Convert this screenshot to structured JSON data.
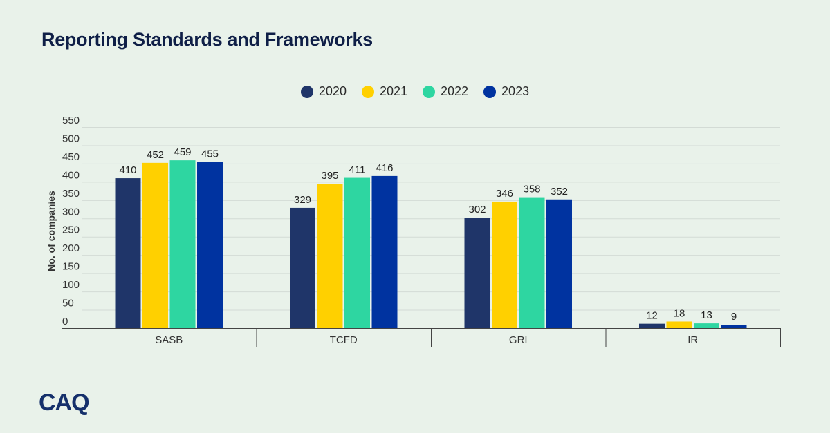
{
  "title": "Reporting Standards and Frameworks",
  "logo_text": "CAQ",
  "colors": [
    "#1f3569",
    "#ffd000",
    "#2ed6a1",
    "#0033a0"
  ],
  "chart_data": {
    "type": "bar",
    "title": "Reporting Standards and Frameworks",
    "ylabel": "No. of companies",
    "xlabel": "",
    "categories": [
      "SASB",
      "TCFD",
      "GRI",
      "IR"
    ],
    "series": [
      {
        "name": "2020",
        "values": [
          410,
          329,
          302,
          12
        ]
      },
      {
        "name": "2021",
        "values": [
          452,
          395,
          346,
          18
        ]
      },
      {
        "name": "2022",
        "values": [
          459,
          411,
          358,
          13
        ]
      },
      {
        "name": "2023",
        "values": [
          455,
          416,
          352,
          9
        ]
      }
    ],
    "ylim": [
      0,
      550
    ],
    "yticks": [
      0,
      50,
      100,
      150,
      200,
      250,
      300,
      350,
      400,
      450,
      500,
      550
    ],
    "grid": true,
    "legend_position": "top-center"
  }
}
